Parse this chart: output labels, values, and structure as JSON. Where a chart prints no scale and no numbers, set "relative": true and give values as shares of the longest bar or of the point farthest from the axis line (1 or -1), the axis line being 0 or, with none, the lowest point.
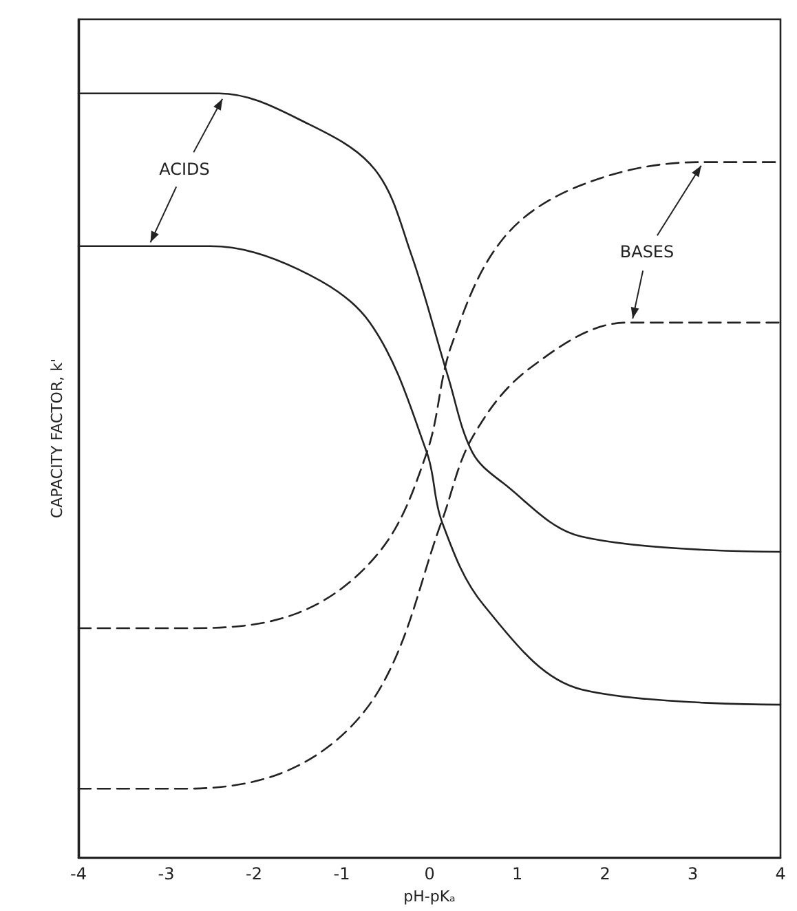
{
  "chart_data": {
    "type": "line",
    "relative": true,
    "xlabel": "pH-pKₐ",
    "ylabel": "CAPACITY FACTOR, k'",
    "xlim": [
      -4,
      4
    ],
    "xticks": [
      -4,
      -3,
      -2,
      -1,
      0,
      1,
      2,
      3,
      4
    ],
    "grid": false,
    "marker": "none",
    "annotations": [
      "ACIDS",
      "BASES"
    ],
    "series": [
      {
        "color": "#222222",
        "line_style": "solid",
        "x": [
          -4,
          -2.4,
          -1.38,
          -0.62,
          -0.21,
          0.21,
          0.49,
          0.84,
          1.73,
          4
        ],
        "values": [
          1.0,
          1.0,
          0.96,
          0.9,
          0.79,
          0.63,
          0.53,
          0.49,
          0.42,
          0.4
        ]
      },
      {
        "color": "#222222",
        "line_style": "solid",
        "x": [
          -4,
          -2.5,
          -1.5,
          -0.68,
          -0.03,
          0.14,
          0.62,
          1.73,
          4
        ],
        "values": [
          0.8,
          0.8,
          0.77,
          0.7,
          0.53,
          0.44,
          0.33,
          0.22,
          0.2
        ]
      },
      {
        "color": "#222222",
        "line_style": "dashed",
        "x": [
          -4,
          -2.8,
          -1.5,
          -0.57,
          -0.03,
          0.25,
          0.84,
          1.73,
          3.08,
          4
        ],
        "values": [
          0.3,
          0.3,
          0.32,
          0.4,
          0.53,
          0.67,
          0.81,
          0.88,
          0.91,
          0.91
        ]
      },
      {
        "color": "#222222",
        "line_style": "dashed",
        "x": [
          -4,
          -2.8,
          -1.5,
          -0.57,
          0.14,
          0.49,
          1.14,
          2.25,
          4
        ],
        "values": [
          0.09,
          0.09,
          0.12,
          0.22,
          0.44,
          0.55,
          0.64,
          0.7,
          0.7
        ]
      }
    ]
  }
}
